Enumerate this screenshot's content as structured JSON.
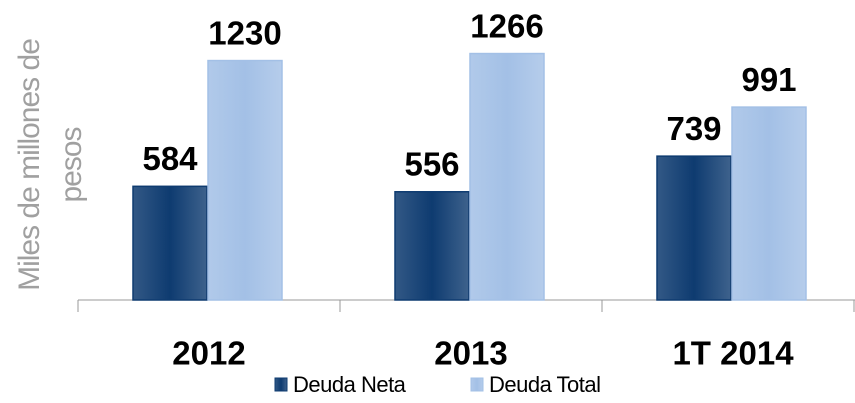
{
  "chart_data": {
    "type": "bar",
    "y_label": "Miles de millones de pesos",
    "categories": [
      "2012",
      "2013",
      "1T 2014"
    ],
    "series": [
      {
        "name": "Deuda Neta",
        "color": "#0e3b70",
        "values": [
          584,
          556,
          739
        ]
      },
      {
        "name": "Deuda Total",
        "color": "#a3c0e6",
        "values": [
          1230,
          1266,
          991
        ]
      }
    ],
    "ylim": [
      0,
      1500
    ],
    "legend": "bottom"
  }
}
